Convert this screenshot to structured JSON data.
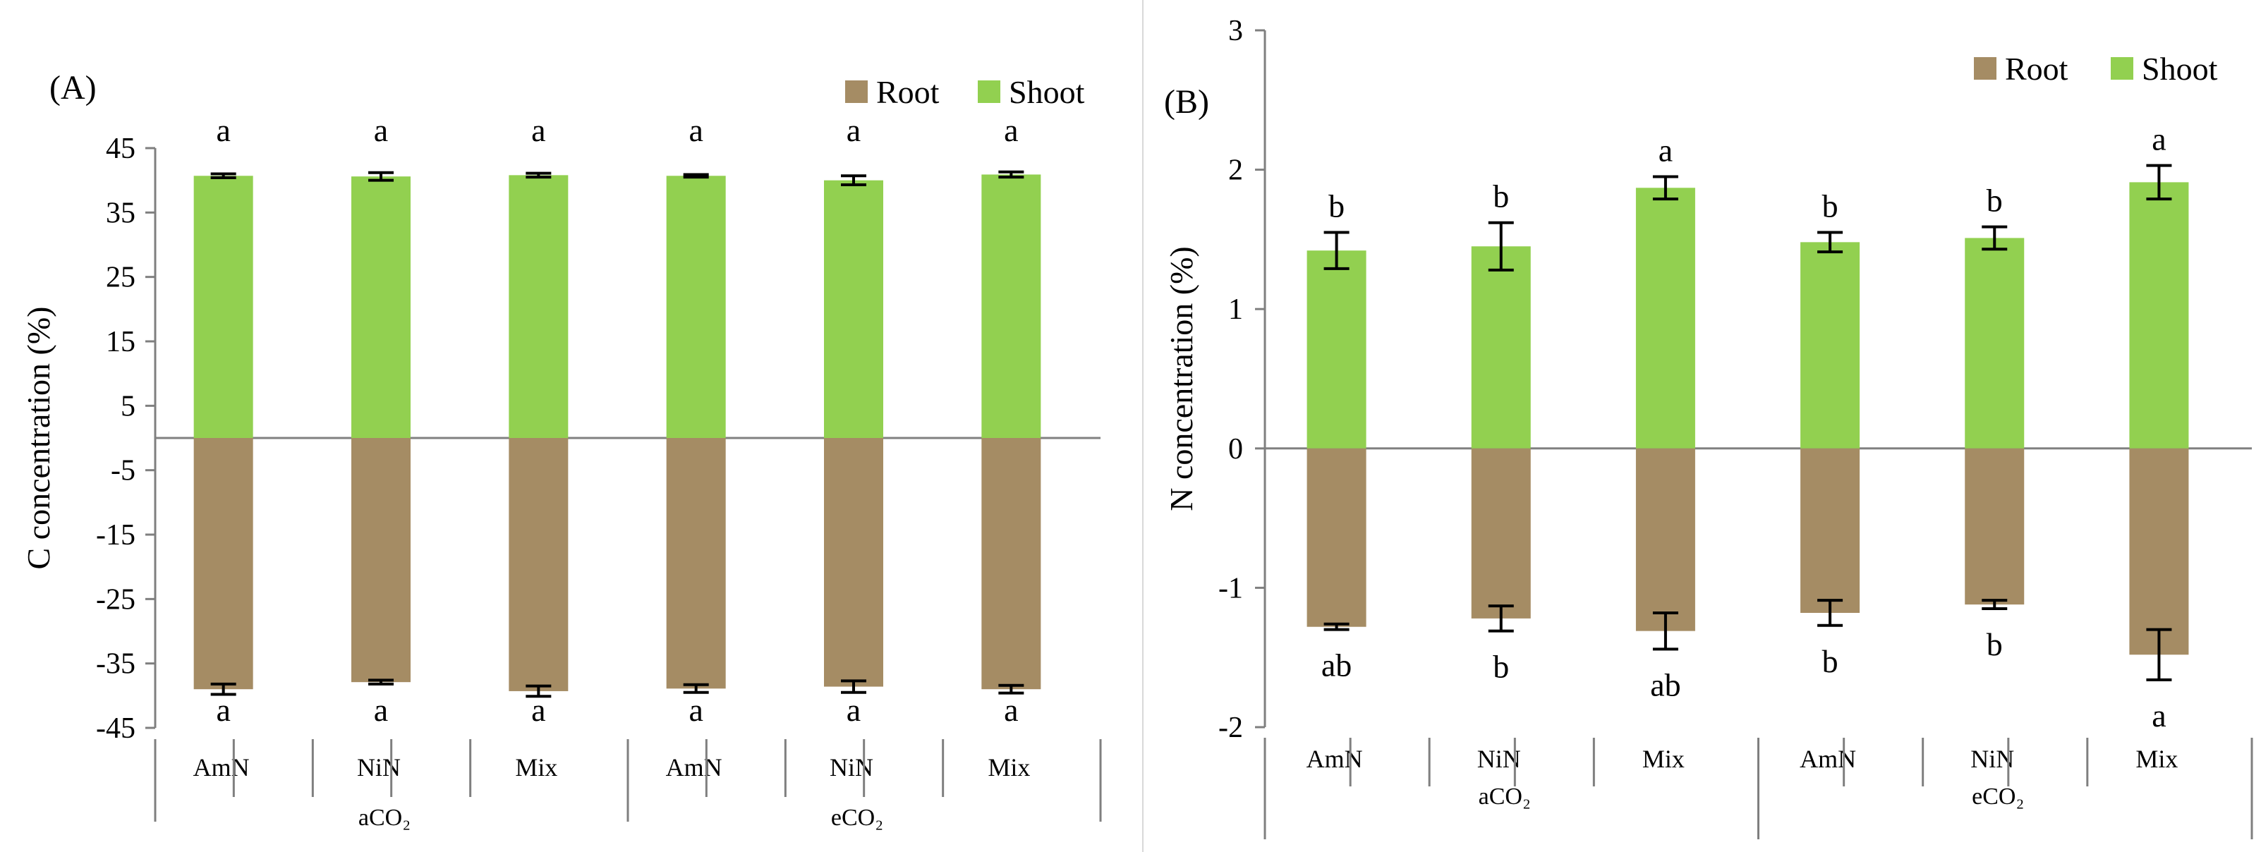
{
  "chart_data": [
    {
      "panel": "(A)",
      "type": "bar",
      "stacked": "diverging",
      "ylabel": "C concentration (%)",
      "ylim": [
        -45,
        45
      ],
      "yticks": [
        45,
        35,
        25,
        15,
        5,
        -5,
        -15,
        -25,
        -35,
        -45
      ],
      "categories": [
        "AmN",
        "NiN",
        "Mix",
        "AmN",
        "NiN",
        "Mix"
      ],
      "groups": [
        "aCO₂",
        "eCO₂"
      ],
      "legend": {
        "position": "top-right",
        "entries": [
          "Root",
          "Shoot"
        ]
      },
      "series": [
        {
          "name": "Shoot",
          "color": "#92d050",
          "values": [
            40.7,
            40.6,
            40.8,
            40.7,
            40.0,
            40.9
          ],
          "errors": [
            0.3,
            0.6,
            0.3,
            0.2,
            0.7,
            0.4
          ],
          "letters": [
            "a",
            "a",
            "a",
            "a",
            "a",
            "a"
          ]
        },
        {
          "name": "Root",
          "color": "#a58c64",
          "values": [
            -39.0,
            -37.9,
            -39.3,
            -38.9,
            -38.6,
            -39.0
          ],
          "errors": [
            0.8,
            0.3,
            0.8,
            0.6,
            0.9,
            0.6
          ],
          "letters": [
            "a",
            "a",
            "a",
            "a",
            "a",
            "a"
          ]
        }
      ]
    },
    {
      "panel": "(B)",
      "type": "bar",
      "stacked": "diverging",
      "ylabel": "N concentration (%)",
      "ylim": [
        -2,
        3
      ],
      "yticks": [
        3,
        2,
        1,
        0,
        -1,
        -2
      ],
      "categories": [
        "AmN",
        "NiN",
        "Mix",
        "AmN",
        "NiN",
        "Mix"
      ],
      "groups": [
        "aCO₂",
        "eCO₂"
      ],
      "legend": {
        "position": "top-right",
        "entries": [
          "Root",
          "Shoot"
        ]
      },
      "series": [
        {
          "name": "Shoot",
          "color": "#92d050",
          "values": [
            1.42,
            1.45,
            1.87,
            1.48,
            1.51,
            1.91
          ],
          "errors": [
            0.13,
            0.17,
            0.08,
            0.07,
            0.08,
            0.12
          ],
          "letters": [
            "b",
            "b",
            "a",
            "b",
            "b",
            "a"
          ]
        },
        {
          "name": "Root",
          "color": "#a58c64",
          "values": [
            -1.28,
            -1.22,
            -1.31,
            -1.18,
            -1.12,
            -1.48
          ],
          "errors": [
            0.02,
            0.09,
            0.13,
            0.09,
            0.03,
            0.18
          ],
          "letters": [
            "ab",
            "b",
            "ab",
            "b",
            "b",
            "a"
          ]
        }
      ]
    }
  ]
}
